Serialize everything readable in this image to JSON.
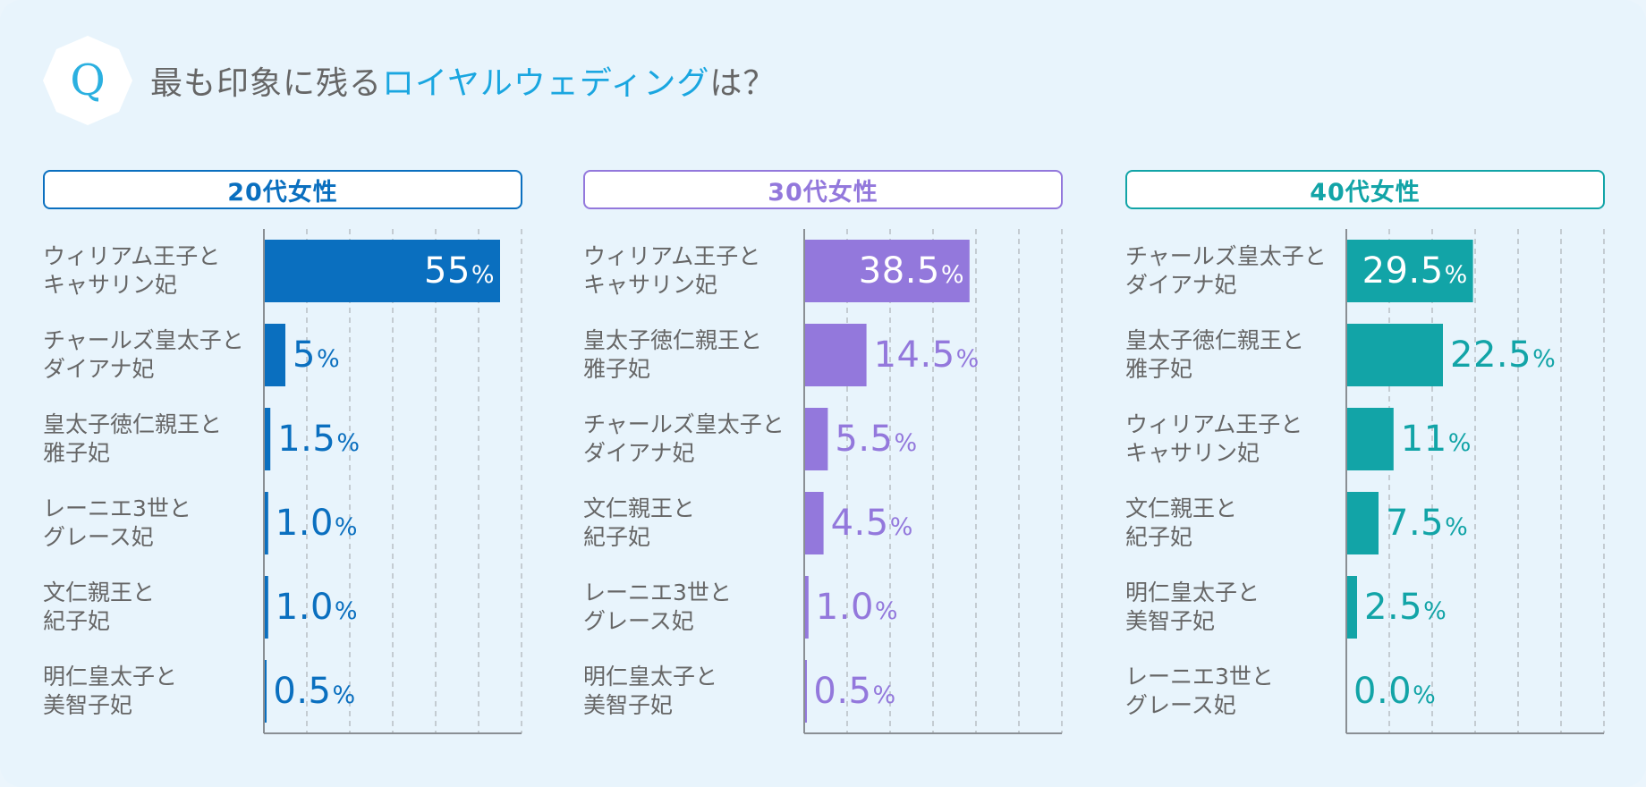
{
  "header": {
    "q_letter": "Q",
    "question_prefix": "最も印象に残る",
    "question_highlight": "ロイヤルウェディング",
    "question_suffix": "は？"
  },
  "colors": {
    "background": "#e8f4fc",
    "highlight": "#1aa6e0",
    "q_badge": "#2bb0e0",
    "grid": "#b8bec4",
    "axis": "#8a8f94"
  },
  "chart_data": [
    {
      "type": "bar",
      "orientation": "horizontal",
      "title": "20代女性",
      "color": "#0a6fbf",
      "unit": "%",
      "xlim": [
        0,
        60
      ],
      "categories": [
        [
          "ウィリアム王子と",
          "キャサリン妃"
        ],
        [
          "チャールズ皇太子と",
          "ダイアナ妃"
        ],
        [
          "皇太子徳仁親王と",
          "雅子妃"
        ],
        [
          "レーニエ3世と",
          "グレース妃"
        ],
        [
          "文仁親王と",
          "紀子妃"
        ],
        [
          "明仁皇太子と",
          "美智子妃"
        ]
      ],
      "values": [
        55,
        5,
        1.5,
        1.0,
        1.0,
        0.5
      ],
      "labels": [
        "55",
        "5",
        "1.5",
        "1.0",
        "1.0",
        "0.5"
      ]
    },
    {
      "type": "bar",
      "orientation": "horizontal",
      "title": "30代女性",
      "color": "#9378dc",
      "unit": "%",
      "xlim": [
        0,
        60
      ],
      "categories": [
        [
          "ウィリアム王子と",
          "キャサリン妃"
        ],
        [
          "皇太子徳仁親王と",
          "雅子妃"
        ],
        [
          "チャールズ皇太子と",
          "ダイアナ妃"
        ],
        [
          "文仁親王と",
          "紀子妃"
        ],
        [
          "レーニエ3世と",
          "グレース妃"
        ],
        [
          "明仁皇太子と",
          "美智子妃"
        ]
      ],
      "values": [
        38.5,
        14.5,
        5.5,
        4.5,
        1.0,
        0.5
      ],
      "labels": [
        "38.5",
        "14.5",
        "5.5",
        "4.5",
        "1.0",
        "0.5"
      ]
    },
    {
      "type": "bar",
      "orientation": "horizontal",
      "title": "40代女性",
      "color": "#12a4a7",
      "unit": "%",
      "xlim": [
        0,
        60
      ],
      "categories": [
        [
          "チャールズ皇太子と",
          "ダイアナ妃"
        ],
        [
          "皇太子徳仁親王と",
          "雅子妃"
        ],
        [
          "ウィリアム王子と",
          "キャサリン妃"
        ],
        [
          "文仁親王と",
          "紀子妃"
        ],
        [
          "明仁皇太子と",
          "美智子妃"
        ],
        [
          "レーニエ3世と",
          "グレース妃"
        ]
      ],
      "values": [
        29.5,
        22.5,
        11,
        7.5,
        2.5,
        0.0
      ],
      "labels": [
        "29.5",
        "22.5",
        "11",
        "7.5",
        "2.5",
        "0.0"
      ]
    }
  ]
}
